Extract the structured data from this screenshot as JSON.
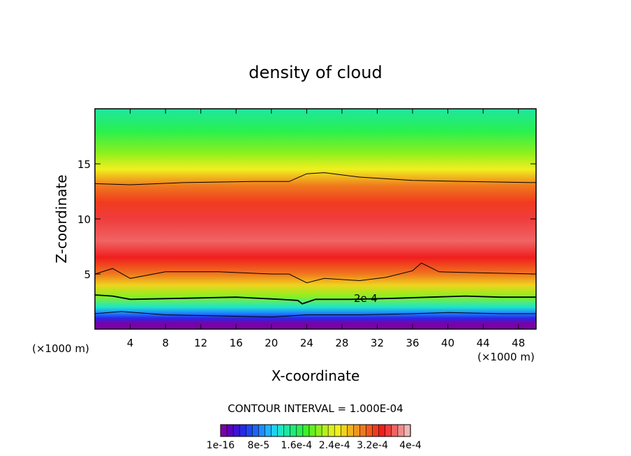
{
  "chart_data": {
    "type": "heatmap",
    "title": "density of cloud",
    "xlabel": "X-coordinate",
    "ylabel": "Z-coordinate",
    "x_unit_label": "(×1000 m)",
    "z_unit_label": "(×1000 m)",
    "xlim": [
      0,
      50
    ],
    "ylim": [
      0,
      20
    ],
    "x_ticks": [
      4,
      8,
      12,
      16,
      20,
      24,
      28,
      32,
      36,
      40,
      44,
      48
    ],
    "y_ticks": [
      5,
      10,
      15
    ],
    "contour_interval_label": "CONTOUR INTERVAL = 1.000E-04",
    "contour_label": "2e-4",
    "colorbar_ticks": [
      "1e-16",
      "8e-5",
      "1.6e-4",
      "2.4e-4",
      "3.2e-4",
      "4e-4"
    ],
    "colorbar_colors": [
      "#7a00a8",
      "#5a00c0",
      "#3c14d2",
      "#2828e6",
      "#1e46f0",
      "#1e64f5",
      "#1e8cff",
      "#1eb4ff",
      "#1ed2f0",
      "#1ee6c8",
      "#1ee6a0",
      "#1eeb78",
      "#28f050",
      "#3cf028",
      "#64f01e",
      "#8cf01e",
      "#b4f01e",
      "#dcf01e",
      "#f0f01e",
      "#f0d21e",
      "#f0b41e",
      "#f0961e",
      "#f0781e",
      "#f05a1e",
      "#f03c1e",
      "#f01e1e",
      "#f03c3c",
      "#f06464",
      "#f08c8c",
      "#f0b4b4"
    ],
    "vertical_profile": [
      {
        "z": 0.0,
        "value": 0.0
      },
      {
        "z": 0.5,
        "value": 5e-06
      },
      {
        "z": 1.0,
        "value": 4e-05
      },
      {
        "z": 1.5,
        "value": 8e-05
      },
      {
        "z": 2.0,
        "value": 0.00012
      },
      {
        "z": 3.0,
        "value": 0.0002
      },
      {
        "z": 4.0,
        "value": 0.00026
      },
      {
        "z": 5.0,
        "value": 0.0003
      },
      {
        "z": 6.5,
        "value": 0.00034
      },
      {
        "z": 8.0,
        "value": 0.00036
      },
      {
        "z": 10.0,
        "value": 0.00035
      },
      {
        "z": 11.5,
        "value": 0.00032
      },
      {
        "z": 13.0,
        "value": 0.0003
      },
      {
        "z": 14.5,
        "value": 0.00025
      },
      {
        "z": 16.0,
        "value": 0.0002
      },
      {
        "z": 18.0,
        "value": 0.00016
      },
      {
        "z": 20.0,
        "value": 0.00014
      }
    ],
    "contours": [
      {
        "level": 0.0003,
        "name": "upper-3e-4",
        "points": [
          [
            0,
            13.2
          ],
          [
            4,
            13.1
          ],
          [
            10,
            13.3
          ],
          [
            18,
            13.4
          ],
          [
            22,
            13.4
          ],
          [
            24,
            14.1
          ],
          [
            26,
            14.2
          ],
          [
            30,
            13.8
          ],
          [
            36,
            13.5
          ],
          [
            42,
            13.4
          ],
          [
            50,
            13.3
          ]
        ]
      },
      {
        "level": 0.0003,
        "name": "lower-3e-4",
        "points": [
          [
            0,
            5.0
          ],
          [
            2,
            5.5
          ],
          [
            4,
            4.6
          ],
          [
            8,
            5.2
          ],
          [
            14,
            5.2
          ],
          [
            20,
            5.0
          ],
          [
            22,
            5.0
          ],
          [
            24,
            4.2
          ],
          [
            26,
            4.6
          ],
          [
            30,
            4.4
          ],
          [
            33,
            4.7
          ],
          [
            36,
            5.3
          ],
          [
            37,
            6.0
          ],
          [
            39,
            5.2
          ],
          [
            44,
            5.1
          ],
          [
            50,
            5.0
          ]
        ]
      },
      {
        "level": 0.0002,
        "name": "2e-4",
        "points": [
          [
            0,
            3.1
          ],
          [
            2,
            3.0
          ],
          [
            4,
            2.7
          ],
          [
            10,
            2.8
          ],
          [
            16,
            2.9
          ],
          [
            21,
            2.7
          ],
          [
            23,
            2.6
          ],
          [
            23.5,
            2.3
          ],
          [
            25,
            2.7
          ],
          [
            29,
            2.7
          ],
          [
            34,
            2.8
          ],
          [
            38,
            2.9
          ],
          [
            42,
            3.0
          ],
          [
            46,
            2.9
          ],
          [
            50,
            2.9
          ]
        ]
      },
      {
        "level": 0.0001,
        "name": "1e-4",
        "points": [
          [
            0,
            1.4
          ],
          [
            3,
            1.6
          ],
          [
            8,
            1.3
          ],
          [
            14,
            1.2
          ],
          [
            20,
            1.1
          ],
          [
            24,
            1.3
          ],
          [
            30,
            1.3
          ],
          [
            36,
            1.4
          ],
          [
            40,
            1.5
          ],
          [
            46,
            1.4
          ],
          [
            50,
            1.4
          ]
        ]
      }
    ]
  }
}
